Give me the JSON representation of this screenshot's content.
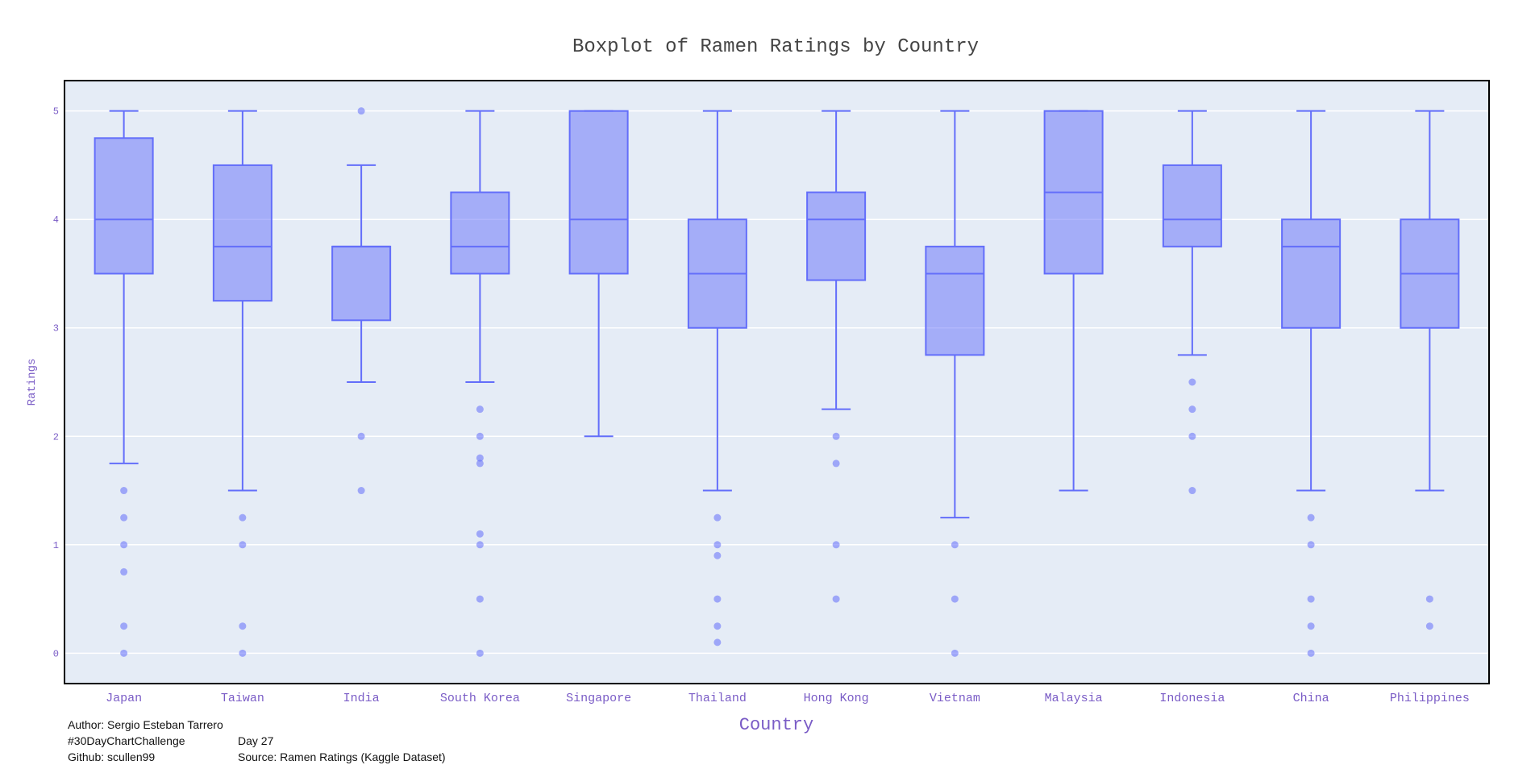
{
  "chart_data": {
    "type": "box",
    "title": "Boxplot of Ramen Ratings by Country",
    "xlabel": "Country",
    "ylabel": "Ratings",
    "ylim": [
      -0.28,
      5.28
    ],
    "yticks": [
      0,
      1,
      2,
      3,
      4,
      5
    ],
    "grid": true,
    "color": "#636efa",
    "box_fill": "rgba(99,110,250,0.5)",
    "plot_bg": "#e5ecf6",
    "categories": [
      "Japan",
      "Taiwan",
      "India",
      "South Korea",
      "Singapore",
      "Thailand",
      "Hong Kong",
      "Vietnam",
      "Malaysia",
      "Indonesia",
      "China",
      "Philippines"
    ],
    "boxes": [
      {
        "name": "Japan",
        "lowerfence": 1.75,
        "q1": 3.5,
        "median": 4.0,
        "q3": 4.75,
        "upperfence": 5.0,
        "outliers": [
          1.5,
          1.25,
          1.0,
          0.75,
          0.25,
          0.0
        ]
      },
      {
        "name": "Taiwan",
        "lowerfence": 1.5,
        "q1": 3.25,
        "median": 3.75,
        "q3": 4.5,
        "upperfence": 5.0,
        "outliers": [
          1.25,
          1.0,
          0.25,
          0.0
        ]
      },
      {
        "name": "India",
        "lowerfence": 2.5,
        "q1": 3.07,
        "median": 3.75,
        "q3": 3.75,
        "upperfence": 4.5,
        "outliers": [
          5.0,
          2.0,
          1.5
        ]
      },
      {
        "name": "South Korea",
        "lowerfence": 2.5,
        "q1": 3.5,
        "median": 3.75,
        "q3": 4.25,
        "upperfence": 5.0,
        "outliers": [
          2.25,
          2.0,
          1.8,
          1.75,
          1.1,
          1.0,
          0.5,
          0.0
        ]
      },
      {
        "name": "Singapore",
        "lowerfence": 2.0,
        "q1": 3.5,
        "median": 4.0,
        "q3": 5.0,
        "upperfence": 5.0,
        "outliers": []
      },
      {
        "name": "Thailand",
        "lowerfence": 1.5,
        "q1": 3.0,
        "median": 3.5,
        "q3": 4.0,
        "upperfence": 5.0,
        "outliers": [
          1.25,
          1.0,
          0.9,
          0.5,
          0.25,
          0.1
        ]
      },
      {
        "name": "Hong Kong",
        "lowerfence": 2.25,
        "q1": 3.44,
        "median": 4.0,
        "q3": 4.25,
        "upperfence": 5.0,
        "outliers": [
          2.0,
          1.75,
          1.0,
          0.5
        ]
      },
      {
        "name": "Vietnam",
        "lowerfence": 1.25,
        "q1": 2.75,
        "median": 3.5,
        "q3": 3.75,
        "upperfence": 5.0,
        "outliers": [
          1.0,
          0.5,
          0.0
        ]
      },
      {
        "name": "Malaysia",
        "lowerfence": 1.5,
        "q1": 3.5,
        "median": 4.25,
        "q3": 5.0,
        "upperfence": 5.0,
        "outliers": []
      },
      {
        "name": "Indonesia",
        "lowerfence": 2.75,
        "q1": 3.75,
        "median": 4.0,
        "q3": 4.5,
        "upperfence": 5.0,
        "outliers": [
          2.5,
          2.25,
          2.0,
          1.5
        ]
      },
      {
        "name": "China",
        "lowerfence": 1.5,
        "q1": 3.0,
        "median": 3.75,
        "q3": 4.0,
        "upperfence": 5.0,
        "outliers": [
          1.25,
          1.0,
          0.5,
          0.25,
          0.0
        ]
      },
      {
        "name": "Philippines",
        "lowerfence": 1.5,
        "q1": 3.0,
        "median": 3.5,
        "q3": 4.0,
        "upperfence": 5.0,
        "outliers": [
          0.5,
          0.25
        ]
      }
    ]
  },
  "credits": {
    "author": "Author: Sergio Esteban Tarrero",
    "challenge": "#30DayChartChallenge",
    "day": "Day 27",
    "github": "Github: scullen99",
    "source": "Source: Ramen Ratings (Kaggle Dataset)"
  }
}
